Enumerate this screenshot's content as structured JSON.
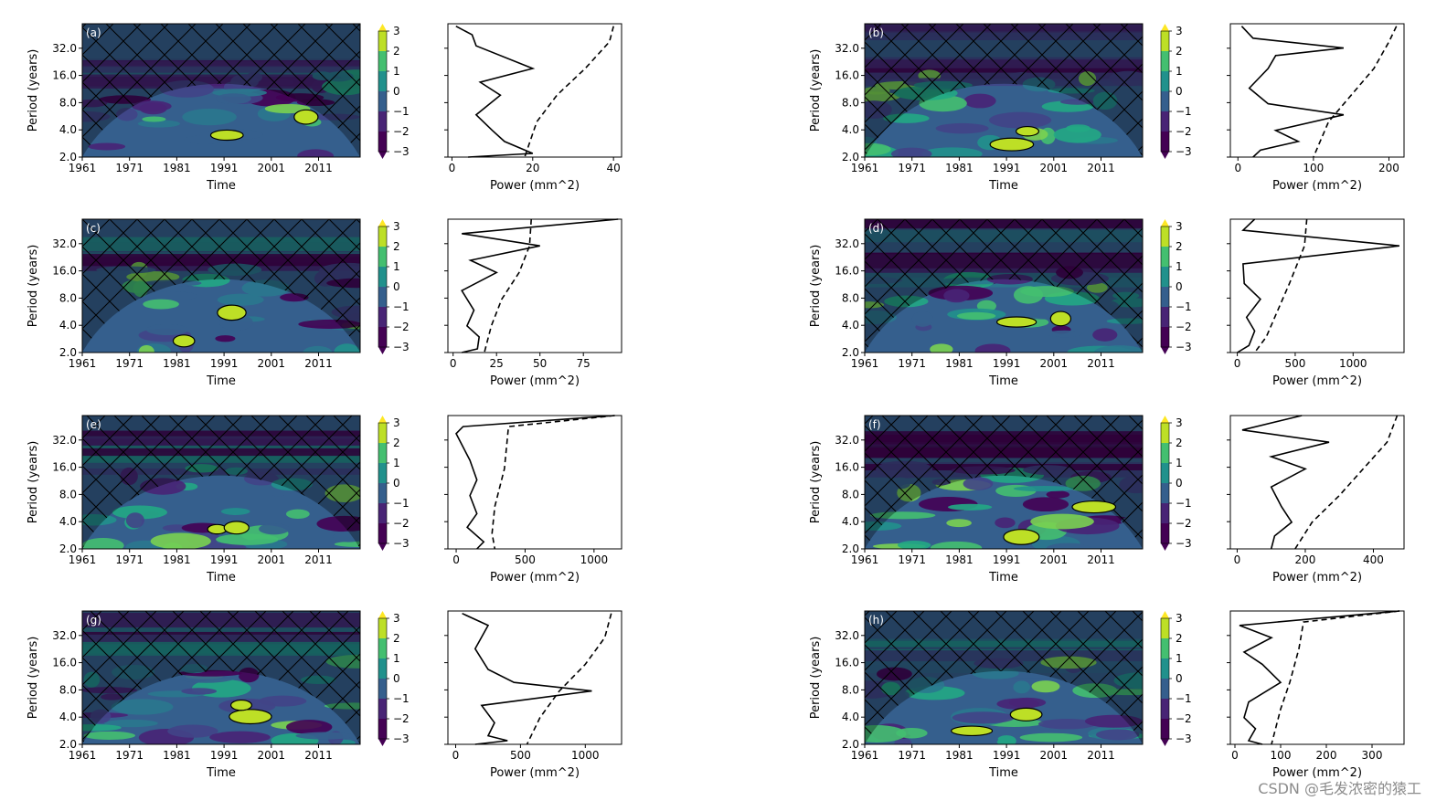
{
  "chart_data": [
    {
      "id": "a",
      "type": "heatmap",
      "panel_label": "(a)",
      "xlabel": "Time",
      "ylabel": "Period (years)",
      "x_ticks": [
        "1961",
        "1971",
        "1981",
        "1991",
        "2001",
        "2011"
      ],
      "y_ticks": [
        "2.0",
        "4.0",
        "8.0",
        "16.0",
        "32.0"
      ],
      "colorbar_ticks": [
        "3",
        "2",
        "1",
        "0",
        "−1",
        "−2",
        "−3"
      ],
      "power_spectrum": {
        "xlabel": "Power (mm^2)",
        "x_ticks": [
          "0",
          "20",
          "40"
        ],
        "x_tick_values": [
          0,
          20,
          40
        ],
        "xlim": [
          -1,
          42
        ],
        "global": [
          [
            1,
            60
          ],
          [
            5,
            48
          ],
          [
            6,
            36
          ],
          [
            20,
            20
          ],
          [
            7,
            14
          ],
          [
            12,
            10
          ],
          [
            6,
            6
          ],
          [
            10,
            4
          ],
          [
            13,
            3
          ],
          [
            20,
            2.2
          ],
          [
            4,
            2
          ]
        ],
        "significance": [
          [
            40,
            60
          ],
          [
            39,
            40
          ],
          [
            33,
            20
          ],
          [
            26,
            10
          ],
          [
            21,
            5
          ],
          [
            18,
            2
          ]
        ]
      }
    },
    {
      "id": "b",
      "type": "heatmap",
      "panel_label": "(b)",
      "xlabel": "Time",
      "ylabel": "Period (years)",
      "x_ticks": [
        "1961",
        "1971",
        "1981",
        "1991",
        "2001",
        "2011"
      ],
      "y_ticks": [
        "2.0",
        "4.0",
        "8.0",
        "16.0",
        "32.0"
      ],
      "colorbar_ticks": [
        "3",
        "2",
        "1",
        "0",
        "−1",
        "−2",
        "−3"
      ],
      "power_spectrum": {
        "xlabel": "Power (mm^2)",
        "x_ticks": [
          "0",
          "100",
          "200"
        ],
        "x_tick_values": [
          0,
          100,
          200
        ],
        "xlim": [
          -10,
          220
        ],
        "global": [
          [
            5,
            60
          ],
          [
            20,
            44
          ],
          [
            140,
            34
          ],
          [
            50,
            28
          ],
          [
            40,
            20
          ],
          [
            15,
            12
          ],
          [
            40,
            8
          ],
          [
            140,
            6
          ],
          [
            50,
            4
          ],
          [
            80,
            3
          ],
          [
            30,
            2.4
          ],
          [
            20,
            2
          ]
        ],
        "significance": [
          [
            210,
            60
          ],
          [
            200,
            40
          ],
          [
            180,
            20
          ],
          [
            150,
            10
          ],
          [
            120,
            5
          ],
          [
            100,
            2
          ]
        ]
      }
    },
    {
      "id": "c",
      "type": "heatmap",
      "panel_label": "(c)",
      "xlabel": "Time",
      "ylabel": "Period (years)",
      "x_ticks": [
        "1961",
        "1971",
        "1981",
        "1991",
        "2001",
        "2011"
      ],
      "y_ticks": [
        "2.0",
        "4.0",
        "8.0",
        "16.0",
        "32.0"
      ],
      "colorbar_ticks": [
        "3",
        "2",
        "1",
        "0",
        "−1",
        "−2",
        "−3"
      ],
      "power_spectrum": {
        "xlabel": "Power (mm^2)",
        "x_ticks": [
          "0",
          "25",
          "50",
          "75"
        ],
        "x_tick_values": [
          0,
          25,
          50,
          75
        ],
        "xlim": [
          -3,
          97
        ],
        "global": [
          [
            95,
            64
          ],
          [
            5,
            44
          ],
          [
            50,
            32
          ],
          [
            10,
            22
          ],
          [
            25,
            16
          ],
          [
            5,
            10
          ],
          [
            12,
            6
          ],
          [
            8,
            4
          ],
          [
            15,
            3
          ],
          [
            14,
            2.2
          ],
          [
            5,
            2
          ]
        ],
        "significance": [
          [
            45,
            64
          ],
          [
            44,
            32
          ],
          [
            38,
            16
          ],
          [
            28,
            8
          ],
          [
            22,
            4
          ],
          [
            18,
            2
          ]
        ]
      }
    },
    {
      "id": "d",
      "type": "heatmap",
      "panel_label": "(d)",
      "xlabel": "Time",
      "ylabel": "Period (years)",
      "x_ticks": [
        "1961",
        "1971",
        "1981",
        "1991",
        "2001",
        "2011"
      ],
      "y_ticks": [
        "2.0",
        "4.0",
        "8.0",
        "16.0",
        "32.0"
      ],
      "colorbar_ticks": [
        "3",
        "2",
        "1",
        "0",
        "−1",
        "−2",
        "−3"
      ],
      "power_spectrum": {
        "xlabel": "Power (mm^2)",
        "x_ticks": [
          "0",
          "500",
          "1000"
        ],
        "x_tick_values": [
          0,
          500,
          1000
        ],
        "xlim": [
          -60,
          1440
        ],
        "global": [
          [
            150,
            64
          ],
          [
            50,
            48
          ],
          [
            1400,
            32
          ],
          [
            50,
            20
          ],
          [
            60,
            12
          ],
          [
            200,
            8
          ],
          [
            80,
            5
          ],
          [
            150,
            3.5
          ],
          [
            100,
            2.4
          ],
          [
            0,
            2
          ]
        ],
        "significance": [
          [
            600,
            64
          ],
          [
            580,
            32
          ],
          [
            450,
            12
          ],
          [
            350,
            6
          ],
          [
            250,
            3
          ],
          [
            150,
            2
          ]
        ]
      }
    },
    {
      "id": "e",
      "type": "heatmap",
      "panel_label": "(e)",
      "xlabel": "Time",
      "ylabel": "Period (years)",
      "x_ticks": [
        "1961",
        "1971",
        "1981",
        "1991",
        "2001",
        "2011"
      ],
      "y_ticks": [
        "2.0",
        "4.0",
        "8.0",
        "16.0",
        "32.0"
      ],
      "colorbar_ticks": [
        "3",
        "2",
        "1",
        "0",
        "−1",
        "−2",
        "−3"
      ],
      "power_spectrum": {
        "xlabel": "Power (mm^2)",
        "x_ticks": [
          "0",
          "500",
          "1000"
        ],
        "x_tick_values": [
          0,
          500,
          1000
        ],
        "xlim": [
          -60,
          1200
        ],
        "global": [
          [
            1150,
            64
          ],
          [
            50,
            48
          ],
          [
            0,
            40
          ],
          [
            100,
            20
          ],
          [
            150,
            12
          ],
          [
            100,
            8
          ],
          [
            150,
            5
          ],
          [
            80,
            3.5
          ],
          [
            200,
            2.4
          ],
          [
            150,
            2
          ]
        ],
        "significance": [
          [
            1150,
            64
          ],
          [
            380,
            48
          ],
          [
            350,
            16
          ],
          [
            280,
            6
          ],
          [
            260,
            3
          ],
          [
            280,
            2
          ]
        ]
      }
    },
    {
      "id": "f",
      "type": "heatmap",
      "panel_label": "(f)",
      "xlabel": "Time",
      "ylabel": "Period (years)",
      "x_ticks": [
        "1961",
        "1971",
        "1981",
        "1991",
        "2001",
        "2011"
      ],
      "y_ticks": [
        "2.0",
        "4.0",
        "8.0",
        "16.0",
        "32.0"
      ],
      "colorbar_ticks": [
        "3",
        "2",
        "1",
        "0",
        "−1",
        "−2",
        "−3"
      ],
      "power_spectrum": {
        "xlabel": "Power (mm^2)",
        "x_ticks": [
          "0",
          "200",
          "400"
        ],
        "x_tick_values": [
          0,
          200,
          400
        ],
        "xlim": [
          -20,
          490
        ],
        "global": [
          [
            190,
            64
          ],
          [
            15,
            44
          ],
          [
            270,
            32
          ],
          [
            100,
            22
          ],
          [
            200,
            16
          ],
          [
            100,
            10
          ],
          [
            130,
            6
          ],
          [
            160,
            4
          ],
          [
            110,
            2.8
          ],
          [
            100,
            2
          ]
        ],
        "significance": [
          [
            470,
            64
          ],
          [
            440,
            32
          ],
          [
            370,
            16
          ],
          [
            300,
            8
          ],
          [
            220,
            4
          ],
          [
            170,
            2
          ]
        ]
      }
    },
    {
      "id": "g",
      "type": "heatmap",
      "panel_label": "(g)",
      "xlabel": "Time",
      "ylabel": "Period (years)",
      "x_ticks": [
        "1961",
        "1971",
        "1981",
        "1991",
        "2001",
        "2011"
      ],
      "y_ticks": [
        "2.0",
        "4.0",
        "8.0",
        "16.0",
        "32.0"
      ],
      "colorbar_ticks": [
        "3",
        "2",
        "1",
        "0",
        "−1",
        "−2",
        "−3"
      ],
      "power_spectrum": {
        "xlabel": "Power (mm^2)",
        "x_ticks": [
          "0",
          "500",
          "1000"
        ],
        "x_tick_values": [
          0,
          500,
          1000
        ],
        "xlim": [
          -60,
          1280
        ],
        "global": [
          [
            50,
            60
          ],
          [
            250,
            44
          ],
          [
            150,
            24
          ],
          [
            250,
            14
          ],
          [
            450,
            10
          ],
          [
            1050,
            8
          ],
          [
            200,
            5.5
          ],
          [
            300,
            3.5
          ],
          [
            250,
            2.5
          ],
          [
            400,
            2.2
          ],
          [
            150,
            2
          ]
        ],
        "significance": [
          [
            1200,
            60
          ],
          [
            1150,
            32
          ],
          [
            1000,
            16
          ],
          [
            800,
            8
          ],
          [
            650,
            4
          ],
          [
            550,
            2
          ]
        ]
      }
    },
    {
      "id": "h",
      "type": "heatmap",
      "panel_label": "(h)",
      "xlabel": "Time",
      "ylabel": "Period (years)",
      "x_ticks": [
        "1961",
        "1971",
        "1981",
        "1991",
        "2001",
        "2011"
      ],
      "y_ticks": [
        "2.0",
        "4.0",
        "8.0",
        "16.0",
        "32.0"
      ],
      "colorbar_ticks": [
        "3",
        "2",
        "1",
        "0",
        "−1",
        "−2",
        "−3"
      ],
      "power_spectrum": {
        "xlabel": "Power (mm^2)",
        "x_ticks": [
          "0",
          "100",
          "200",
          "300"
        ],
        "x_tick_values": [
          0,
          100,
          200,
          300
        ],
        "xlim": [
          -10,
          370
        ],
        "global": [
          [
            360,
            64
          ],
          [
            10,
            44
          ],
          [
            80,
            32
          ],
          [
            20,
            22
          ],
          [
            60,
            16
          ],
          [
            100,
            10
          ],
          [
            30,
            6
          ],
          [
            20,
            4
          ],
          [
            45,
            3
          ],
          [
            30,
            2.2
          ],
          [
            60,
            2
          ]
        ],
        "significance": [
          [
            360,
            64
          ],
          [
            150,
            48
          ],
          [
            140,
            24
          ],
          [
            120,
            10
          ],
          [
            100,
            5
          ],
          [
            80,
            2
          ]
        ]
      }
    }
  ],
  "colormap": [
    "#fde725",
    "#bddf26",
    "#7ad151",
    "#44bf70",
    "#22a884",
    "#21918c",
    "#2a788e",
    "#355f8d",
    "#414487",
    "#482475",
    "#440154"
  ],
  "watermark": "CSDN @毛发浓密的猿工"
}
